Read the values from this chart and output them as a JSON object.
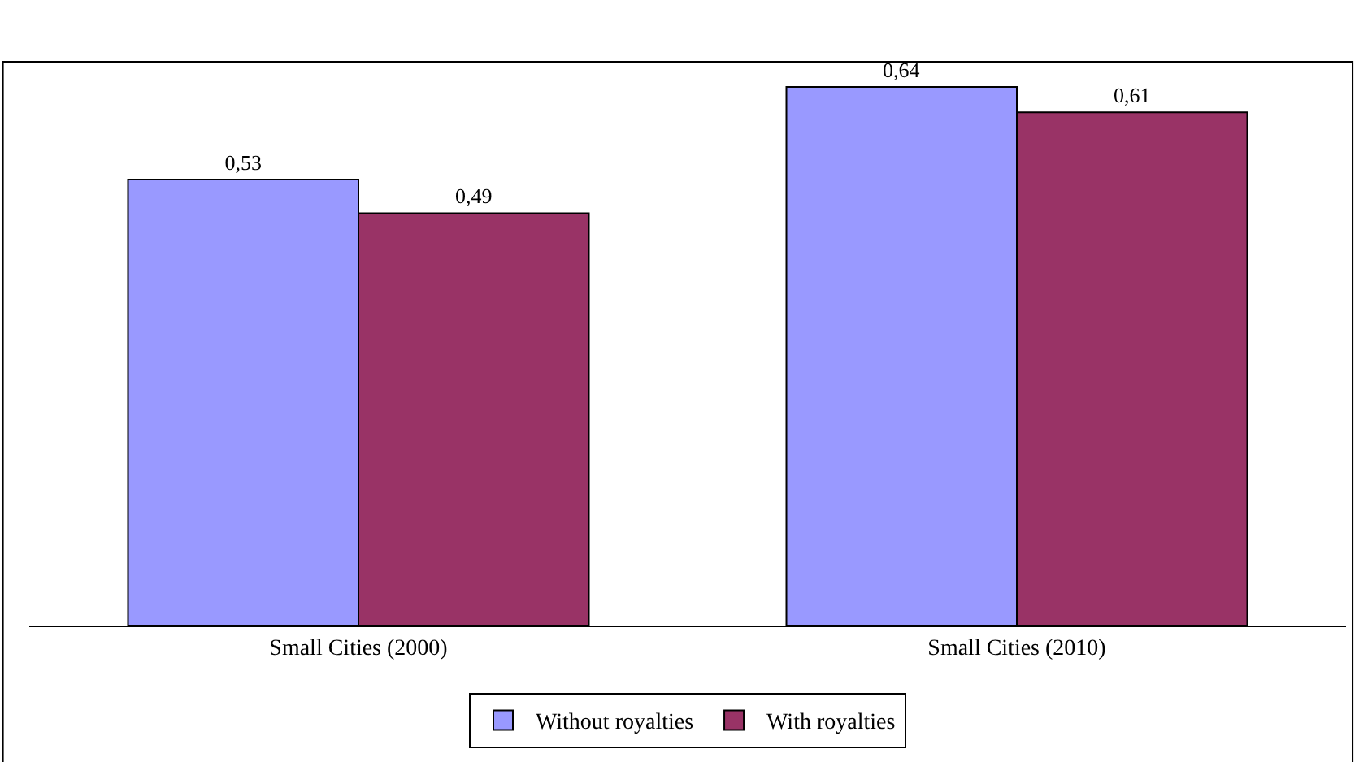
{
  "chart_data": {
    "type": "bar",
    "categories": [
      "Small Cities (2000)",
      "Small Cities (2010)"
    ],
    "series": [
      {
        "name": "Without royalties",
        "color": "#9999ff",
        "values": [
          0.53,
          0.64
        ],
        "value_labels": [
          "0,53",
          "0,64"
        ]
      },
      {
        "name": "With royalties",
        "color": "#993366",
        "values": [
          0.49,
          0.61
        ],
        "value_labels": [
          "0,49",
          "0,61"
        ]
      }
    ],
    "ylim": [
      0,
      0.67
    ],
    "legend": "bottom"
  }
}
